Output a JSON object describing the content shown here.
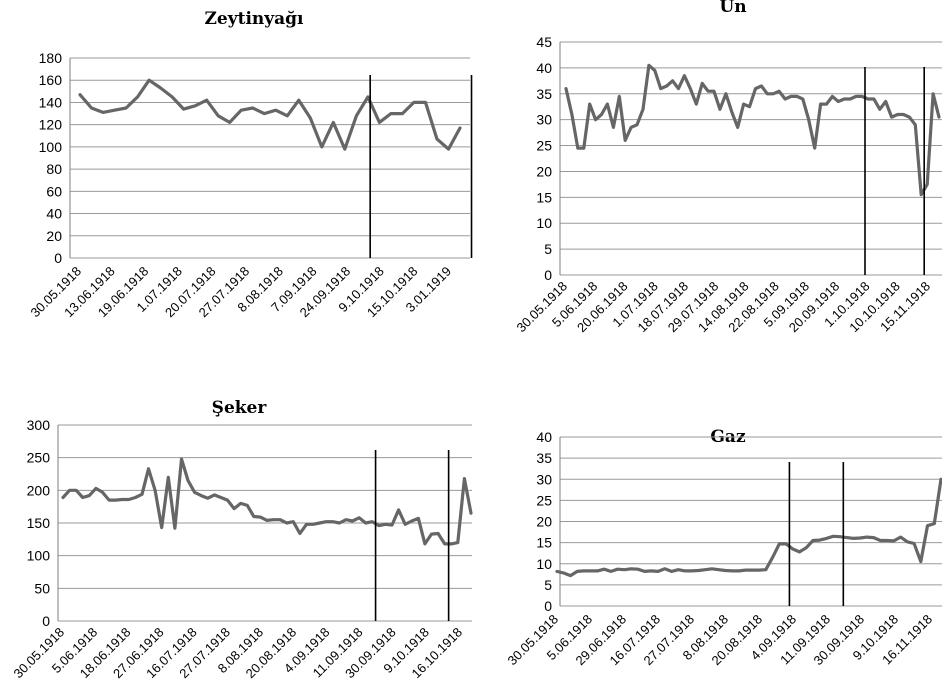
{
  "chart_data": [
    {
      "type": "line",
      "title": "Zeytinyağı",
      "ylim": [
        0,
        180
      ],
      "yticks": [
        0,
        20,
        40,
        60,
        80,
        100,
        120,
        140,
        160,
        180
      ],
      "x_tick_labels": [
        "30.05.1918",
        "13.06.1918",
        "19.06.1918",
        "1.07.1918",
        "20.07.1918",
        "27.07.1918",
        "8.08.1918",
        "7.09.1918",
        "24.09.1918",
        "9.10.1918",
        "15.10.1918",
        "3.01.1919"
      ],
      "grid": true,
      "legend": "none",
      "series_color": "#666666",
      "vertical_markers_at_point": [
        25.2,
        34.0
      ],
      "values": [
        147,
        135,
        131,
        133,
        135,
        145,
        160,
        153,
        145,
        134,
        137,
        142,
        128,
        122,
        133,
        135,
        130,
        133,
        128,
        142,
        126,
        100,
        122,
        98,
        128,
        145,
        122,
        130,
        130,
        140,
        140,
        107,
        98,
        117
      ]
    },
    {
      "type": "line",
      "title": "Un",
      "ylim": [
        0,
        45
      ],
      "yticks": [
        0,
        5,
        10,
        15,
        20,
        25,
        30,
        35,
        40,
        45
      ],
      "x_tick_labels": [
        "30.05.1918",
        "5.06.1918",
        "20.06.1918",
        "1.07.1918",
        "18.07.1918",
        "29.07.1918",
        "14.08.1918",
        "22.08.1918",
        "5.09.1918",
        "20.09.1918",
        "1.10.1918",
        "10.10.1918",
        "15.11.1918"
      ],
      "grid": true,
      "legend": "none",
      "series_color": "#666666",
      "vertical_markers_at_point": [
        50.5,
        60.5
      ],
      "values": [
        36,
        31,
        24.5,
        24.5,
        33,
        30,
        31,
        33,
        28.5,
        34.5,
        26,
        28.5,
        29,
        32,
        40.5,
        39.5,
        36,
        36.5,
        37.5,
        36,
        38.5,
        36,
        33,
        37,
        35.5,
        35.5,
        32,
        35,
        31.5,
        28.5,
        33,
        32.5,
        36,
        36.5,
        35,
        35,
        35.5,
        34,
        34.5,
        34.5,
        34,
        30,
        24.5,
        33,
        33,
        34.5,
        33.5,
        34,
        34,
        34.5,
        34.5,
        34,
        34,
        32,
        33.5,
        30.5,
        31,
        31,
        30.5,
        29,
        15.5,
        17.5,
        35,
        30.5
      ]
    },
    {
      "type": "line",
      "title": "Şeker",
      "ylim": [
        0,
        300
      ],
      "yticks": [
        0,
        50,
        100,
        150,
        200,
        250,
        300
      ],
      "x_tick_labels": [
        "30.05.1918",
        "5.06.1918",
        "18.06.1918",
        "27.06.1918",
        "16.07.1918",
        "27.07.1918",
        "8.08.1918",
        "20.08.1918",
        "4.09.1918",
        "11.09.1918",
        "30.09.1918",
        "9.10.1918",
        "16.10.1918"
      ],
      "grid": true,
      "legend": "none",
      "series_color": "#666666",
      "vertical_markers_at_point": [
        47.5,
        58.6
      ],
      "values": [
        189,
        200,
        200,
        189,
        192,
        203,
        197,
        185,
        185,
        186,
        186,
        189,
        194,
        233,
        200,
        143,
        220,
        142,
        248,
        215,
        197,
        192,
        188,
        193,
        189,
        185,
        172,
        180,
        177,
        160,
        159,
        154,
        155,
        155,
        150,
        152,
        134,
        148,
        148,
        150,
        152,
        152,
        150,
        155,
        153,
        158,
        150,
        152,
        146,
        148,
        147,
        170,
        148,
        153,
        157,
        118,
        133,
        134,
        118,
        118,
        120,
        218,
        165
      ]
    },
    {
      "type": "line",
      "title": "Gaz",
      "ylim": [
        0,
        40
      ],
      "yticks": [
        0,
        5,
        10,
        15,
        20,
        25,
        30,
        35,
        40
      ],
      "x_tick_labels": [
        "30.05.1918",
        "5.06.1918",
        "29.06.1918",
        "16.07.1918",
        "27.07.1918",
        "8.08.1918",
        "20.08.1918",
        "4.09.1918",
        "11.09.1918",
        "30.09.1918",
        "9.10.1918",
        "16.11.1918"
      ],
      "grid": true,
      "legend": "none",
      "series_color": "#666666",
      "vertical_markers_at_point": [
        34.5,
        42.5
      ],
      "values": [
        8.2,
        7.8,
        7.2,
        8.2,
        8.3,
        8.3,
        8.3,
        8.7,
        8.2,
        8.7,
        8.6,
        8.8,
        8.7,
        8.2,
        8.3,
        8.2,
        8.8,
        8.2,
        8.6,
        8.3,
        8.3,
        8.4,
        8.6,
        8.8,
        8.6,
        8.4,
        8.3,
        8.3,
        8.5,
        8.5,
        8.5,
        8.6,
        11.5,
        14.7,
        14.7,
        13.5,
        12.8,
        13.8,
        15.5,
        15.6,
        16.0,
        16.5,
        16.4,
        16.2,
        16.0,
        16.1,
        16.3,
        16.2,
        15.5,
        15.5,
        15.4,
        16.3,
        15.2,
        14.8,
        10.5,
        19.0,
        19.5,
        30.0
      ]
    }
  ]
}
